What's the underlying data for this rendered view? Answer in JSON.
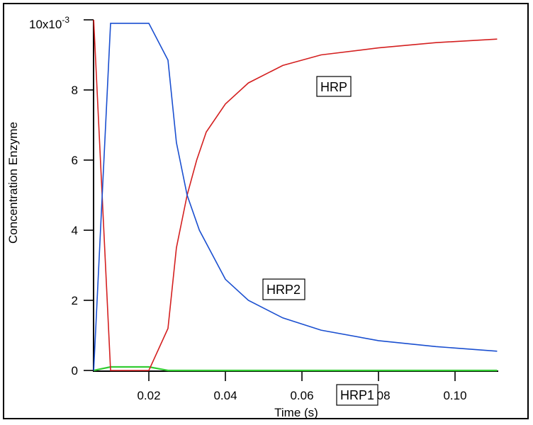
{
  "chart_data": {
    "type": "line",
    "title": "",
    "xlabel": "Time (s)",
    "ylabel": "Concentration Enzyme",
    "y_scale_label": "10x10",
    "y_scale_exponent": "-3",
    "xlim": [
      0.0056,
      0.111
    ],
    "ylim": [
      0,
      0.01
    ],
    "grid": false,
    "legend": "none (inline boxed annotations)",
    "x_ticks": [
      0.02,
      0.04,
      0.06,
      0.08,
      0.1
    ],
    "x_tick_labels": [
      "0.02",
      "0.04",
      "0.06",
      "0.08",
      "0.10"
    ],
    "y_ticks": [
      0,
      2,
      4,
      6,
      8,
      10
    ],
    "y_tick_labels": [
      "0",
      "2",
      "4",
      "6",
      "8",
      "10x10"
    ],
    "y_units_multiplier": "1e-3",
    "series": [
      {
        "name": "HRP",
        "color": "#d42020",
        "x": [
          0.0056,
          0.01,
          0.02,
          0.025,
          0.0272,
          0.03,
          0.0325,
          0.035,
          0.04,
          0.046,
          0.055,
          0.065,
          0.08,
          0.095,
          0.111
        ],
        "y": [
          10.0,
          0.0,
          0.0,
          1.2,
          3.5,
          5.0,
          6.0,
          6.8,
          7.6,
          8.2,
          8.7,
          9.0,
          9.2,
          9.35,
          9.45
        ]
      },
      {
        "name": "HRP2",
        "color": "#1a4fd0",
        "x": [
          0.0056,
          0.01,
          0.02,
          0.025,
          0.0272,
          0.03,
          0.0332,
          0.04,
          0.046,
          0.055,
          0.065,
          0.08,
          0.095,
          0.111
        ],
        "y": [
          0.0,
          9.9,
          9.9,
          8.85,
          6.5,
          5.0,
          4.0,
          2.6,
          2.0,
          1.5,
          1.15,
          0.85,
          0.68,
          0.55
        ]
      },
      {
        "name": "HRP1",
        "color": "#33cc33",
        "x": [
          0.0056,
          0.01,
          0.02,
          0.025,
          0.04,
          0.06,
          0.08,
          0.111
        ],
        "y": [
          0.0,
          0.1,
          0.1,
          0.0,
          0.0,
          0.0,
          0.0,
          0.0
        ]
      }
    ],
    "annotations": [
      {
        "text": "HRP",
        "x": 0.066,
        "y": 8.1
      },
      {
        "text": "HRP2",
        "x": 0.052,
        "y": 2.3
      },
      {
        "text": "HRP1",
        "x": 0.0735,
        "y": -0.7
      }
    ]
  },
  "axes": {
    "x_title": "Time (s)",
    "y_title": "Concentration Enzyme"
  },
  "labels": {
    "hrp": "HRP",
    "hrp2": "HRP2",
    "hrp1": "HRP1"
  }
}
